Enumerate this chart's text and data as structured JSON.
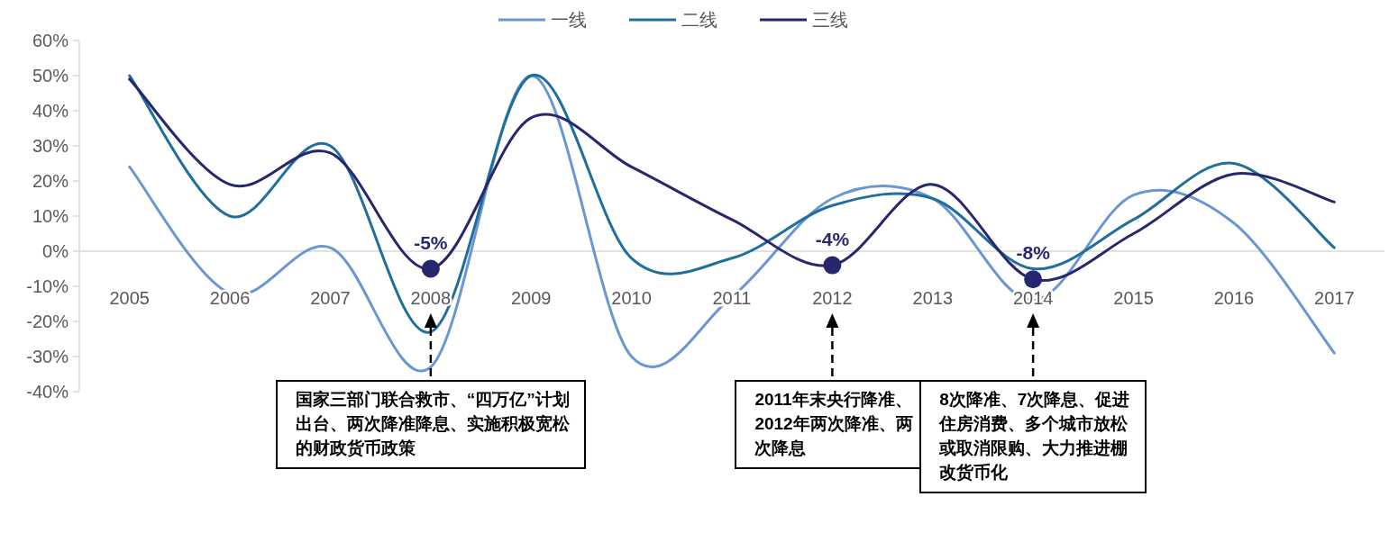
{
  "chart_data": {
    "type": "line",
    "categories": [
      "2005",
      "2006",
      "2007",
      "2008",
      "2009",
      "2010",
      "2011",
      "2012",
      "2013",
      "2014",
      "2015",
      "2016",
      "2017"
    ],
    "ylim": [
      -40,
      60
    ],
    "yticks": [
      {
        "value": -40,
        "label": "-40%"
      },
      {
        "value": -30,
        "label": "-30%"
      },
      {
        "value": -20,
        "label": "-20%"
      },
      {
        "value": -10,
        "label": "-10%"
      },
      {
        "value": 0,
        "label": "0%"
      },
      {
        "value": 10,
        "label": "10%"
      },
      {
        "value": 20,
        "label": "20%"
      },
      {
        "value": 30,
        "label": "30%"
      },
      {
        "value": 40,
        "label": "40%"
      },
      {
        "value": 50,
        "label": "50%"
      },
      {
        "value": 60,
        "label": "60%"
      }
    ],
    "grid": false,
    "legend": "top",
    "line_style": "solid",
    "series": [
      {
        "name": "一线",
        "color": "#6a96d4",
        "values": [
          24,
          -12,
          1,
          -33,
          50,
          -30,
          -13,
          15,
          15,
          -14,
          16,
          8,
          -29
        ]
      },
      {
        "name": "二线",
        "color": "#1f6e9c",
        "values": [
          50,
          10,
          30,
          -23,
          50,
          -2,
          -2,
          13,
          15,
          -5,
          9,
          25,
          1
        ]
      },
      {
        "name": "三线",
        "color": "#27276f",
        "values": [
          49,
          19,
          28,
          -5,
          38,
          24,
          9,
          -4,
          19,
          -8,
          5,
          22,
          14
        ]
      },
      {
        "type": "scatter",
        "marker": "circle",
        "color": "#27276f",
        "values": [
          null,
          null,
          null,
          -5,
          null,
          null,
          null,
          -4,
          null,
          -8,
          null,
          null,
          null
        ],
        "value_labels": [
          null,
          null,
          null,
          "-5%",
          null,
          null,
          null,
          "-4%",
          null,
          "-8%",
          null,
          null,
          null
        ]
      }
    ],
    "annotations": [
      {
        "text": "国家三部门联合救市、“四万亿”计划出台、两次降准降息、实施积极宽松的财政货币政策",
        "x": "2008"
      },
      {
        "text": "2011年末央行降准、2012年两次降准、两次降息",
        "x": "2012"
      },
      {
        "text": "8次降准、7次降息、促进住房消费、多个城市放松或取消限购、大力推进棚改货币化",
        "x": "2014"
      }
    ]
  }
}
